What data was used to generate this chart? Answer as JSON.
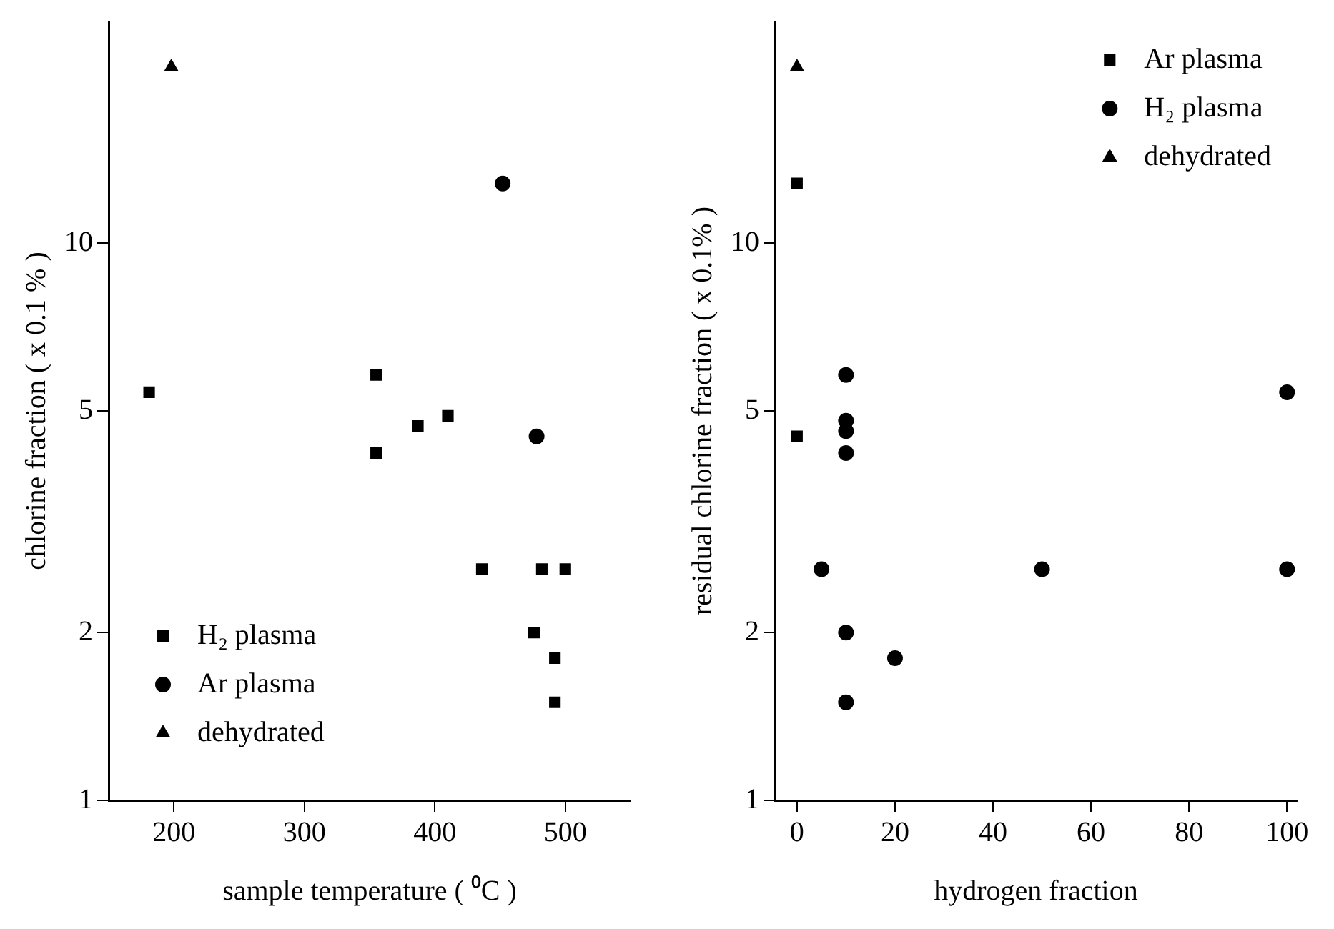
{
  "chart_data": [
    {
      "type": "scatter",
      "xlabel": "sample temperature ( ⁰C )",
      "ylabel": "chlorine fraction ( x 0.1 % )",
      "log": "y",
      "xlim": [
        150,
        550
      ],
      "xticks": [
        200,
        300,
        400,
        500
      ],
      "ylim": [
        1,
        25
      ],
      "yticks": [
        1,
        2,
        5,
        10
      ],
      "grid": false,
      "legend": "bottom left",
      "series": [
        {
          "name": "H₂ plasma",
          "color": "#000000",
          "marker": "square",
          "x": [
            181,
            355,
            355,
            387,
            410,
            436,
            476,
            482,
            492,
            500,
            492
          ],
          "values": [
            5.4,
            5.8,
            4.2,
            4.7,
            4.9,
            2.6,
            2.0,
            2.6,
            1.8,
            2.6,
            1.5
          ]
        },
        {
          "name": "Ar plasma",
          "color": "#000000",
          "marker": "circle",
          "x": [
            452,
            478
          ],
          "values": [
            12.8,
            4.5
          ]
        },
        {
          "name": "dehydrated",
          "color": "#000000",
          "marker": "triangle",
          "x": [
            198
          ],
          "values": [
            20.7
          ]
        }
      ]
    },
    {
      "type": "scatter",
      "xlabel": "hydrogen fraction",
      "ylabel": "residual chlorine fraction ( x 0.1% )",
      "log": "y",
      "xlim": [
        -4.5,
        102
      ],
      "xticks": [
        0,
        20,
        40,
        60,
        80,
        100
      ],
      "ylim": [
        1,
        25
      ],
      "yticks": [
        1,
        2,
        5,
        10
      ],
      "grid": false,
      "legend": "top right",
      "series": [
        {
          "name": "Ar plasma",
          "color": "#000000",
          "marker": "square",
          "x": [
            0,
            0
          ],
          "values": [
            12.8,
            4.5
          ]
        },
        {
          "name": "H₂ plasma",
          "color": "#000000",
          "marker": "circle",
          "x": [
            10,
            10,
            10,
            10,
            5,
            10,
            10,
            20,
            50,
            100,
            100
          ],
          "values": [
            5.8,
            4.8,
            4.6,
            4.2,
            2.6,
            2.0,
            1.5,
            1.8,
            2.6,
            5.4,
            2.6
          ]
        },
        {
          "name": "dehydrated",
          "color": "#000000",
          "marker": "triangle",
          "x": [
            0
          ],
          "values": [
            20.7
          ]
        }
      ]
    }
  ]
}
